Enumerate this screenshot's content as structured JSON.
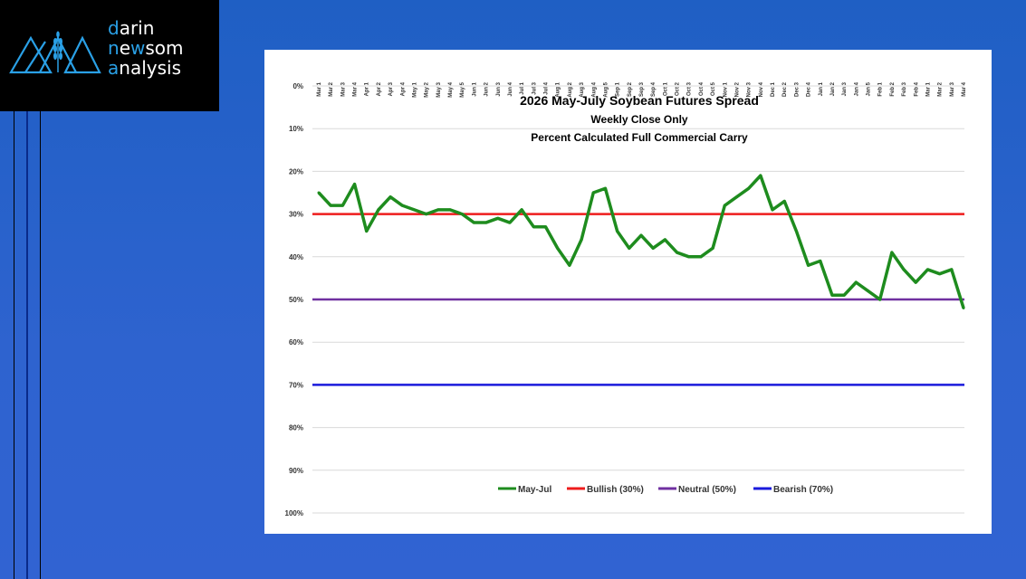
{
  "logo": {
    "line1": {
      "accent": "d",
      "rest": "arin"
    },
    "line2": {
      "accent": "n",
      "mid": "e",
      "accent2": "w",
      "rest": "som"
    },
    "line3": {
      "accent": "a",
      "rest": "nalysis"
    },
    "icon": "mountain-wheat-icon",
    "accent_color": "#2aa0e6"
  },
  "chart_data": {
    "type": "line",
    "title": "2026 May-July Soybean Futures Spread",
    "subtitle1": "Weekly Close Only",
    "subtitle2": "Percent Calculated Full Commercial Carry",
    "y_axis": {
      "ticks": [
        "0%",
        "10%",
        "20%",
        "30%",
        "40%",
        "50%",
        "60%",
        "70%",
        "80%",
        "90%",
        "100%"
      ],
      "range": [
        0,
        100
      ],
      "inverted": true
    },
    "x_axis": {
      "position": "top",
      "rotated_labels": true,
      "categories": [
        "Mar 1",
        "Mar 2",
        "Mar 3",
        "Mar 4",
        "Apr 1",
        "Apr 2",
        "Apr 3",
        "Apr 4",
        "May 1",
        "May 2",
        "May 3",
        "May 4",
        "May 5",
        "Jun 1",
        "Jun 2",
        "Jun 3",
        "Jun 4",
        "Jul 1",
        "Jul 3",
        "Jul 4",
        "Aug 1",
        "Aug 2",
        "Aug 3",
        "Aug 4",
        "Aug 5",
        "Sep 1",
        "Sep 2",
        "Sep 3",
        "Sep 4",
        "Oct 1",
        "Oct 2",
        "Oct 3",
        "Oct 4",
        "Oct 5",
        "Nov 1",
        "Nov 2",
        "Nov 3",
        "Nov 4",
        "Dec 1",
        "Dec 2",
        "Dec 3",
        "Dec 4",
        "Jan 1",
        "Jan 2",
        "Jan 3",
        "Jan 4",
        "Jan 5",
        "Feb 1",
        "Feb 2",
        "Feb 3",
        "Feb 4",
        "Mar 1",
        "Mar 2",
        "Mar 3",
        "Mar 4"
      ]
    },
    "grid": true,
    "series": [
      {
        "name": "May-Jul",
        "color": "#1e8c1e",
        "values": [
          25,
          28,
          28,
          23,
          34,
          29,
          26,
          28,
          29,
          30,
          29,
          29,
          30,
          32,
          32,
          31,
          32,
          29,
          33,
          33,
          38,
          42,
          36,
          25,
          24,
          34,
          38,
          35,
          38,
          36,
          39,
          40,
          40,
          38,
          28,
          26,
          24,
          21,
          29,
          27,
          34,
          42,
          41,
          49,
          49,
          46,
          48,
          50,
          39,
          43,
          46,
          43,
          44,
          43,
          52
        ]
      },
      {
        "name": "Bullish (30%)",
        "color": "#ee1c1c",
        "constant": 30
      },
      {
        "name": "Neutral (50%)",
        "color": "#7030a0",
        "constant": 50
      },
      {
        "name": "Bearish (70%)",
        "color": "#1a1adc",
        "constant": 70
      }
    ],
    "legend_position": "bottom-center"
  }
}
